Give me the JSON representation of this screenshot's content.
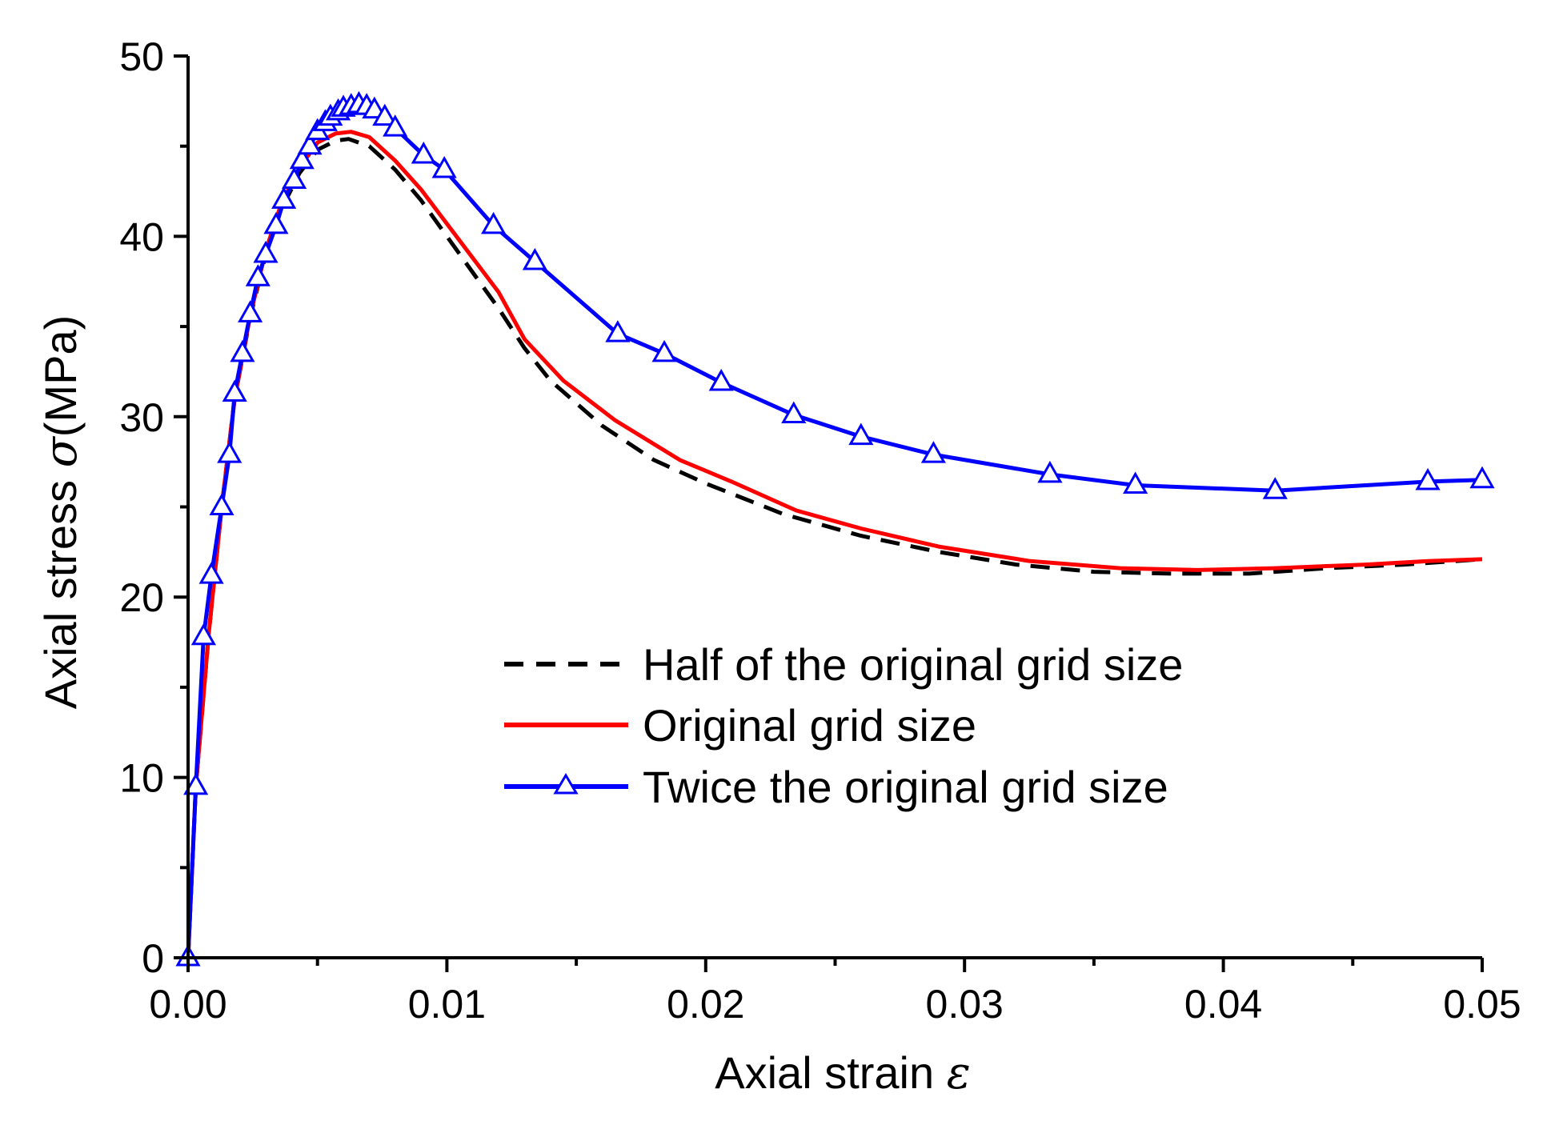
{
  "chart_data": {
    "type": "line",
    "xlabel": "Axial strain",
    "xlabel_symbol": "ε",
    "ylabel": "Axial stress",
    "ylabel_symbol": "σ",
    "ylabel_unit": "(MPa)",
    "xlim": [
      0,
      0.05
    ],
    "ylim": [
      0,
      50
    ],
    "x_ticks": [
      "0.00",
      "0.01",
      "0.02",
      "0.03",
      "0.04",
      "0.05"
    ],
    "y_ticks": [
      "0",
      "10",
      "20",
      "30",
      "40",
      "50"
    ],
    "grid": false,
    "legend_position": "center-right",
    "series": [
      {
        "name": "Half of the original grid size",
        "color": "#000000",
        "style": "dashed",
        "marker": "none",
        "points": [
          [
            0,
            0
          ],
          [
            0.0003,
            9.5
          ],
          [
            0.0008,
            18
          ],
          [
            0.0013,
            25
          ],
          [
            0.0018,
            31
          ],
          [
            0.0024,
            35.5
          ],
          [
            0.003,
            39
          ],
          [
            0.0036,
            41.5
          ],
          [
            0.0043,
            43.5
          ],
          [
            0.005,
            44.8
          ],
          [
            0.0057,
            45.3
          ],
          [
            0.0062,
            45.4
          ],
          [
            0.007,
            45
          ],
          [
            0.008,
            43.7
          ],
          [
            0.009,
            42
          ],
          [
            0.01,
            40
          ],
          [
            0.011,
            38
          ],
          [
            0.012,
            36
          ],
          [
            0.013,
            33.8
          ],
          [
            0.014,
            32
          ],
          [
            0.016,
            29.5
          ],
          [
            0.018,
            27.6
          ],
          [
            0.02,
            26.3
          ],
          [
            0.023,
            24.6
          ],
          [
            0.026,
            23.4
          ],
          [
            0.029,
            22.5
          ],
          [
            0.032,
            21.8
          ],
          [
            0.035,
            21.4
          ],
          [
            0.038,
            21.3
          ],
          [
            0.041,
            21.3
          ],
          [
            0.044,
            21.6
          ],
          [
            0.047,
            21.8
          ],
          [
            0.05,
            22.1
          ]
        ]
      },
      {
        "name": "Original grid size",
        "color": "#ff0000",
        "style": "solid",
        "marker": "none",
        "points": [
          [
            0,
            0
          ],
          [
            0.0003,
            9.5
          ],
          [
            0.0008,
            18
          ],
          [
            0.0013,
            25
          ],
          [
            0.0018,
            31
          ],
          [
            0.0024,
            35.6
          ],
          [
            0.003,
            39.2
          ],
          [
            0.0036,
            41.8
          ],
          [
            0.0043,
            43.8
          ],
          [
            0.005,
            45.2
          ],
          [
            0.0057,
            45.7
          ],
          [
            0.0063,
            45.8
          ],
          [
            0.007,
            45.5
          ],
          [
            0.008,
            44.2
          ],
          [
            0.009,
            42.6
          ],
          [
            0.01,
            40.7
          ],
          [
            0.011,
            38.8
          ],
          [
            0.012,
            36.9
          ],
          [
            0.013,
            34.3
          ],
          [
            0.0145,
            32
          ],
          [
            0.0165,
            29.8
          ],
          [
            0.019,
            27.6
          ],
          [
            0.021,
            26.4
          ],
          [
            0.0235,
            24.8
          ],
          [
            0.026,
            23.8
          ],
          [
            0.029,
            22.8
          ],
          [
            0.0325,
            22
          ],
          [
            0.036,
            21.6
          ],
          [
            0.039,
            21.5
          ],
          [
            0.042,
            21.6
          ],
          [
            0.0455,
            21.8
          ],
          [
            0.048,
            22
          ],
          [
            0.05,
            22.1
          ]
        ]
      },
      {
        "name": "Twice the original grid size",
        "color": "#0000ff",
        "style": "solid",
        "marker": "triangle",
        "points": [
          [
            0,
            0
          ],
          [
            0.0003,
            9.5
          ],
          [
            0.0006,
            17.8
          ],
          [
            0.0009,
            21.2
          ],
          [
            0.0013,
            25
          ],
          [
            0.0016,
            27.9
          ],
          [
            0.0018,
            31.3
          ],
          [
            0.0021,
            33.5
          ],
          [
            0.0024,
            35.7
          ],
          [
            0.0027,
            37.7
          ],
          [
            0.003,
            39
          ],
          [
            0.0034,
            40.6
          ],
          [
            0.0037,
            42
          ],
          [
            0.0041,
            43.1
          ],
          [
            0.0044,
            44.2
          ],
          [
            0.0047,
            45
          ],
          [
            0.005,
            45.8
          ],
          [
            0.0053,
            46.3
          ],
          [
            0.0055,
            46.6
          ],
          [
            0.0058,
            46.9
          ],
          [
            0.006,
            47.1
          ],
          [
            0.0063,
            47.2
          ],
          [
            0.0066,
            47.3
          ],
          [
            0.0069,
            47.2
          ],
          [
            0.0072,
            47
          ],
          [
            0.0076,
            46.6
          ],
          [
            0.008,
            46
          ],
          [
            0.0091,
            44.5
          ],
          [
            0.0099,
            43.7
          ],
          [
            0.0118,
            40.6
          ],
          [
            0.0134,
            38.6
          ],
          [
            0.0166,
            34.6
          ],
          [
            0.0184,
            33.5
          ],
          [
            0.0206,
            31.9
          ],
          [
            0.0234,
            30.1
          ],
          [
            0.026,
            28.9
          ],
          [
            0.0288,
            27.9
          ],
          [
            0.0333,
            26.8
          ],
          [
            0.0366,
            26.2
          ],
          [
            0.042,
            25.9
          ],
          [
            0.0479,
            26.4
          ],
          [
            0.05,
            26.5
          ]
        ]
      }
    ]
  }
}
